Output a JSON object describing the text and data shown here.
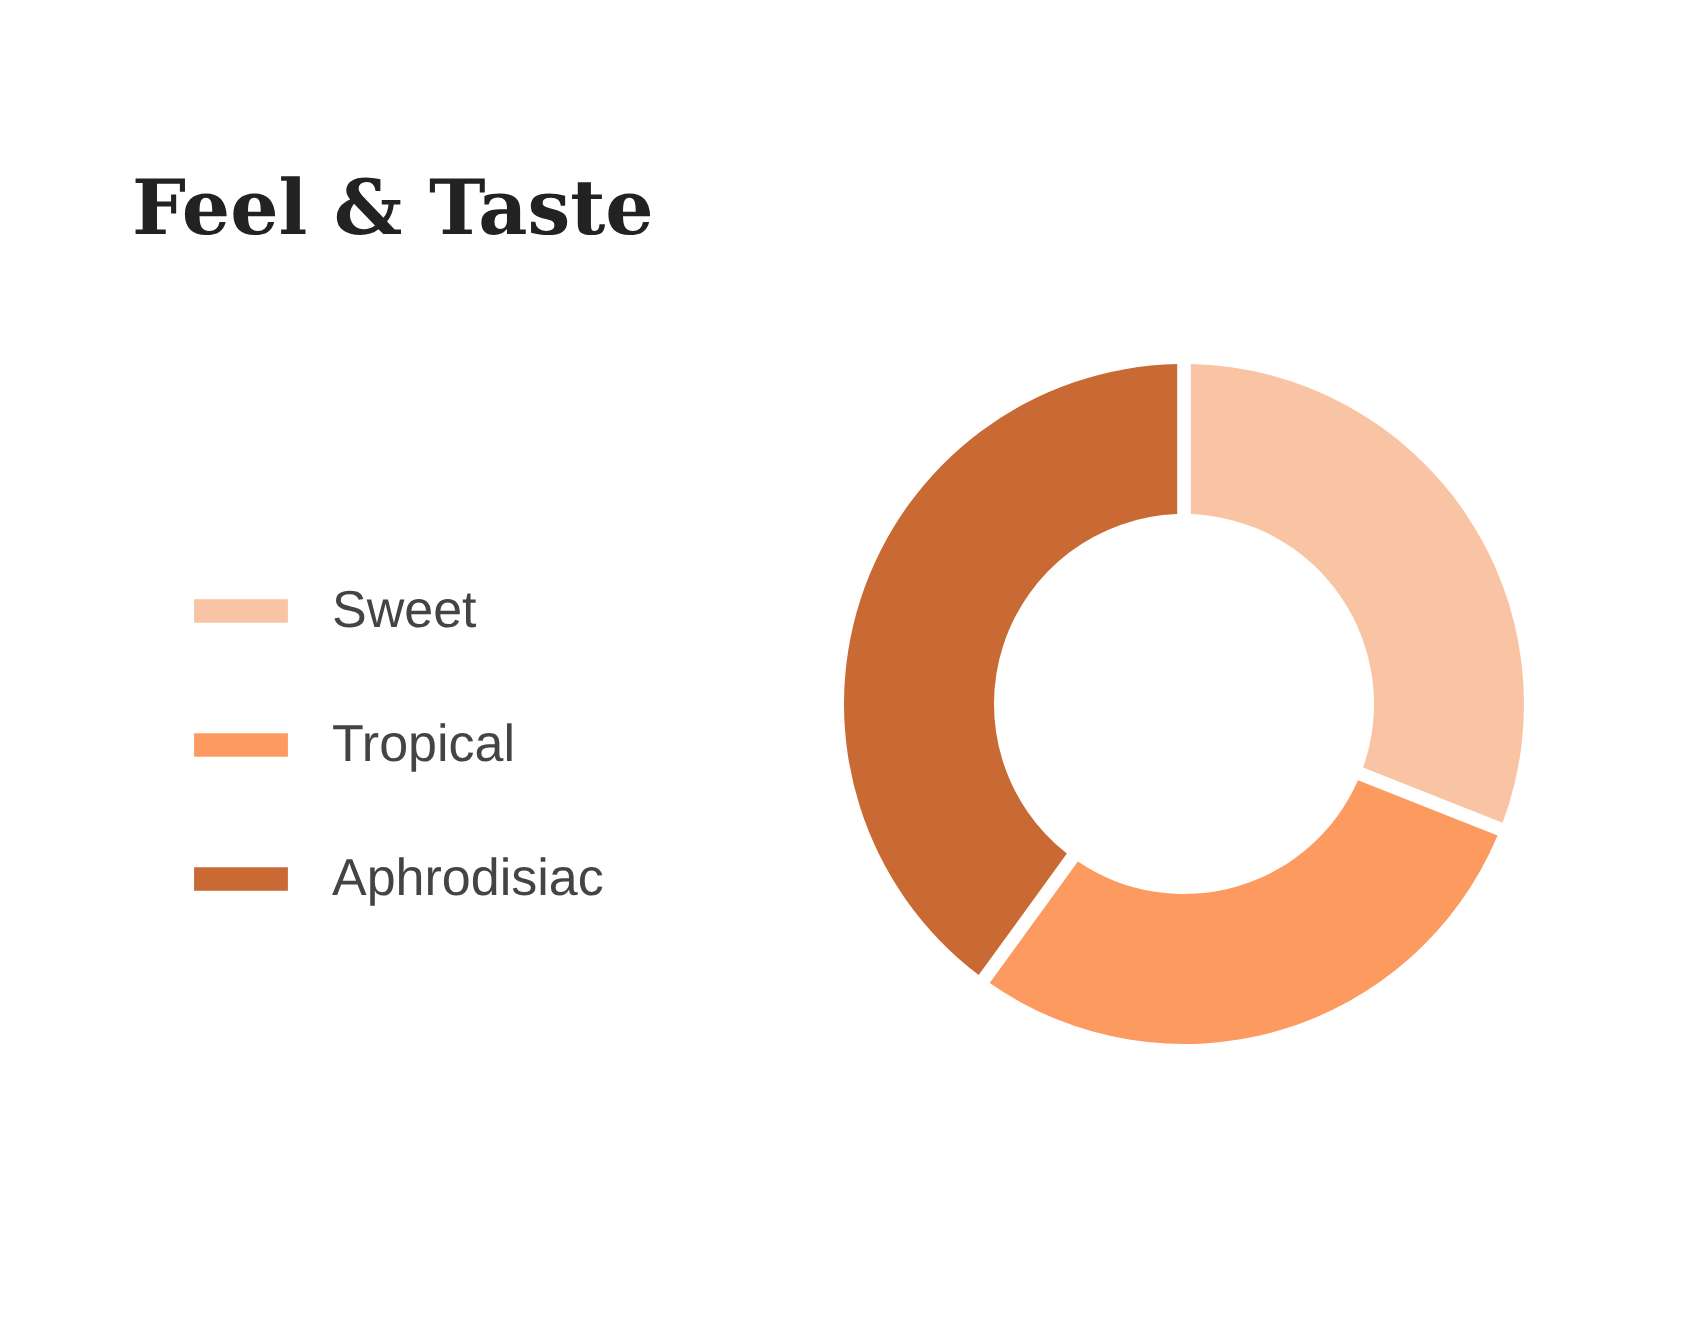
{
  "chart_data": {
    "type": "donut",
    "title": "Feel & Taste",
    "categories": [
      "Sweet",
      "Tropical",
      "Aphrodisiac"
    ],
    "values": [
      31,
      29,
      40
    ],
    "colors": [
      "#f9c4a4",
      "#fc9a60",
      "#c96a35"
    ],
    "legend": "left"
  }
}
